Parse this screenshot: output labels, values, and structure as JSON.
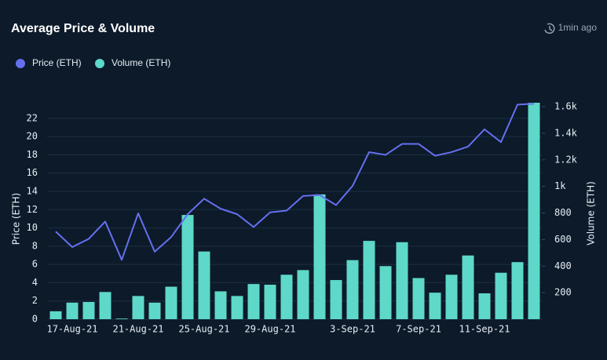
{
  "header": {
    "title": "Average Price & Volume",
    "updated": "1min ago"
  },
  "chart_data": {
    "type": "bar-line",
    "ylabel": "Price (ETH)",
    "y2label": "Volume (ETH)",
    "categories": [
      null,
      "17-Aug-21",
      null,
      null,
      null,
      "21-Aug-21",
      null,
      null,
      null,
      "25-Aug-21",
      null,
      null,
      null,
      "29-Aug-21",
      null,
      null,
      null,
      null,
      "3-Sep-21",
      null,
      null,
      null,
      "7-Sep-21",
      null,
      null,
      null,
      "11-Sep-21",
      null,
      null,
      null
    ],
    "series": [
      {
        "name": "Price (ETH)",
        "type": "line",
        "color": "#6570ef",
        "axis": "y",
        "values": [
          9.6,
          7.9,
          8.8,
          10.7,
          6.5,
          11.6,
          7.4,
          9.0,
          11.5,
          13.2,
          12.1,
          11.5,
          10.1,
          11.7,
          11.9,
          13.5,
          13.6,
          12.5,
          14.6,
          18.3,
          18.0,
          19.2,
          19.2,
          17.9,
          18.3,
          18.9,
          20.8,
          19.4,
          23.5,
          23.6
        ]
      },
      {
        "name": "Volume (ETH)",
        "type": "bar",
        "color": "#5ed8c8",
        "axis": "y2",
        "values": [
          60,
          125,
          130,
          205,
          5,
          175,
          125,
          245,
          785,
          510,
          210,
          175,
          265,
          260,
          335,
          370,
          940,
          295,
          445,
          590,
          400,
          580,
          310,
          200,
          335,
          480,
          195,
          350,
          430,
          1630
        ]
      }
    ],
    "ylim": [
      0,
      24
    ],
    "yticks": [
      0,
      2,
      4,
      6,
      8,
      10,
      12,
      14,
      16,
      18,
      20,
      22
    ],
    "y2lim": [
      0,
      1650
    ],
    "y2ticks": [
      200,
      400,
      600,
      800,
      {
        "value": 1000,
        "label": "1k"
      },
      {
        "value": 1200,
        "label": "1.2k"
      },
      {
        "value": 1400,
        "label": "1.4k"
      },
      {
        "value": 1600,
        "label": "1.6k"
      }
    ],
    "grid": true,
    "legend": "top-left"
  }
}
